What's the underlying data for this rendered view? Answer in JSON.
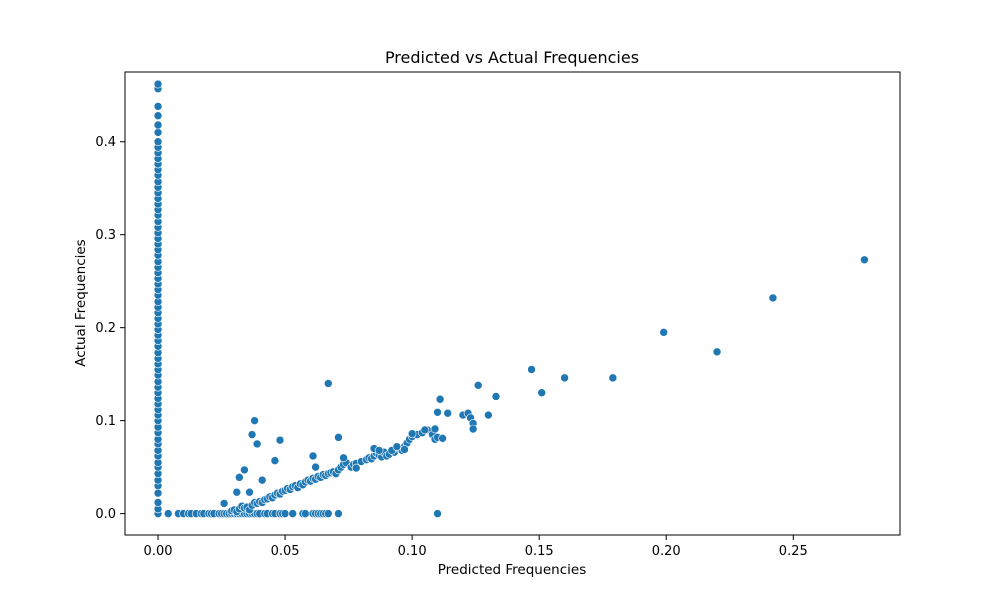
{
  "chart_data": {
    "type": "scatter",
    "title": "Predicted vs Actual Frequencies",
    "xlabel": "Predicted Frequencies",
    "ylabel": "Actual Frequencies",
    "xlim": [
      -0.013,
      0.292
    ],
    "ylim": [
      -0.023,
      0.475
    ],
    "x_ticks": [
      0.0,
      0.05,
      0.1,
      0.15,
      0.2,
      0.25
    ],
    "x_tick_labels": [
      "0.00",
      "0.05",
      "0.10",
      "0.15",
      "0.20",
      "0.25"
    ],
    "y_ticks": [
      0.0,
      0.1,
      0.2,
      0.3,
      0.4
    ],
    "y_tick_labels": [
      "0.0",
      "0.1",
      "0.2",
      "0.3",
      "0.4"
    ],
    "grid": false,
    "marker_color": "#1f77b4",
    "series": [
      {
        "points": [
          [
            0,
            0
          ],
          [
            0,
            0.005
          ],
          [
            0,
            0.012
          ],
          [
            0,
            0.022
          ],
          [
            0,
            0.03
          ],
          [
            0,
            0.036
          ],
          [
            0,
            0.043
          ],
          [
            0,
            0.05
          ],
          [
            0,
            0.055
          ],
          [
            0,
            0.062
          ],
          [
            0,
            0.068
          ],
          [
            0,
            0.075
          ],
          [
            0,
            0.08
          ],
          [
            0,
            0.087
          ],
          [
            0,
            0.093
          ],
          [
            0,
            0.1
          ],
          [
            0,
            0.106
          ],
          [
            0,
            0.112
          ],
          [
            0,
            0.118
          ],
          [
            0,
            0.124
          ],
          [
            0,
            0.13
          ],
          [
            0,
            0.136
          ],
          [
            0,
            0.142
          ],
          [
            0,
            0.149
          ],
          [
            0,
            0.155
          ],
          [
            0,
            0.161
          ],
          [
            0,
            0.167
          ],
          [
            0,
            0.173
          ],
          [
            0,
            0.18
          ],
          [
            0,
            0.186
          ],
          [
            0,
            0.192
          ],
          [
            0,
            0.198
          ],
          [
            0,
            0.204
          ],
          [
            0,
            0.21
          ],
          [
            0,
            0.216
          ],
          [
            0,
            0.222
          ],
          [
            0,
            0.228
          ],
          [
            0,
            0.235
          ],
          [
            0,
            0.241
          ],
          [
            0,
            0.247
          ],
          [
            0,
            0.253
          ],
          [
            0,
            0.259
          ],
          [
            0,
            0.265
          ],
          [
            0,
            0.271
          ],
          [
            0,
            0.278
          ],
          [
            0,
            0.284
          ],
          [
            0,
            0.29
          ],
          [
            0,
            0.296
          ],
          [
            0,
            0.302
          ],
          [
            0,
            0.308
          ],
          [
            0,
            0.314
          ],
          [
            0,
            0.321
          ],
          [
            0,
            0.327
          ],
          [
            0,
            0.333
          ],
          [
            0,
            0.339
          ],
          [
            0,
            0.345
          ],
          [
            0,
            0.351
          ],
          [
            0,
            0.357
          ],
          [
            0,
            0.364
          ],
          [
            0,
            0.37
          ],
          [
            0,
            0.376
          ],
          [
            0,
            0.382
          ],
          [
            0,
            0.388
          ],
          [
            0,
            0.394
          ],
          [
            0,
            0.4
          ],
          [
            0,
            0.41
          ],
          [
            0,
            0.418
          ],
          [
            0,
            0.428
          ],
          [
            0,
            0.438
          ],
          [
            0,
            0.457
          ],
          [
            0,
            0.462
          ],
          [
            0.004,
            0
          ],
          [
            0.008,
            0
          ],
          [
            0.01,
            0
          ],
          [
            0.012,
            0
          ],
          [
            0.013,
            0
          ],
          [
            0.015,
            0
          ],
          [
            0.017,
            0
          ],
          [
            0.018,
            0
          ],
          [
            0.02,
            0
          ],
          [
            0.021,
            0
          ],
          [
            0.022,
            0
          ],
          [
            0.024,
            0
          ],
          [
            0.025,
            0
          ],
          [
            0.026,
            0
          ],
          [
            0.027,
            0
          ],
          [
            0.028,
            0
          ],
          [
            0.029,
            0
          ],
          [
            0.03,
            0
          ],
          [
            0.031,
            0
          ],
          [
            0.032,
            0
          ],
          [
            0.033,
            0
          ],
          [
            0.034,
            0
          ],
          [
            0.035,
            0
          ],
          [
            0.036,
            0
          ],
          [
            0.037,
            0
          ],
          [
            0.038,
            0
          ],
          [
            0.039,
            0
          ],
          [
            0.04,
            0
          ],
          [
            0.042,
            0
          ],
          [
            0.043,
            0
          ],
          [
            0.045,
            0
          ],
          [
            0.046,
            0
          ],
          [
            0.048,
            0
          ],
          [
            0.049,
            0
          ],
          [
            0.05,
            0
          ],
          [
            0.053,
            0
          ],
          [
            0.057,
            0
          ],
          [
            0.058,
            0
          ],
          [
            0.061,
            0
          ],
          [
            0.062,
            0
          ],
          [
            0.063,
            0
          ],
          [
            0.064,
            0
          ],
          [
            0.065,
            0
          ],
          [
            0.066,
            0
          ],
          [
            0.067,
            0
          ],
          [
            0.071,
            0
          ],
          [
            0.11,
            0
          ],
          [
            0.026,
            0.011
          ],
          [
            0.029,
            0.003
          ],
          [
            0.03,
            0.004
          ],
          [
            0.031,
            0.002
          ],
          [
            0.032,
            0.005
          ],
          [
            0.033,
            0.008
          ],
          [
            0.034,
            0.006
          ],
          [
            0.035,
            0.007
          ],
          [
            0.036,
            0.004
          ],
          [
            0.037,
            0.009
          ],
          [
            0.038,
            0.012
          ],
          [
            0.039,
            0.011
          ],
          [
            0.04,
            0.013
          ],
          [
            0.041,
            0.012
          ],
          [
            0.042,
            0.015
          ],
          [
            0.043,
            0.016
          ],
          [
            0.044,
            0.018
          ],
          [
            0.045,
            0.017
          ],
          [
            0.046,
            0.02
          ],
          [
            0.047,
            0.022
          ],
          [
            0.048,
            0.021
          ],
          [
            0.049,
            0.024
          ],
          [
            0.05,
            0.025
          ],
          [
            0.051,
            0.027
          ],
          [
            0.052,
            0.026
          ],
          [
            0.053,
            0.029
          ],
          [
            0.054,
            0.03
          ],
          [
            0.055,
            0.028
          ],
          [
            0.056,
            0.032
          ],
          [
            0.057,
            0.031
          ],
          [
            0.058,
            0.034
          ],
          [
            0.059,
            0.036
          ],
          [
            0.06,
            0.035
          ],
          [
            0.061,
            0.038
          ],
          [
            0.062,
            0.037
          ],
          [
            0.063,
            0.04
          ],
          [
            0.064,
            0.039
          ],
          [
            0.065,
            0.042
          ],
          [
            0.066,
            0.041
          ],
          [
            0.067,
            0.043
          ],
          [
            0.068,
            0.044
          ],
          [
            0.069,
            0.045
          ],
          [
            0.07,
            0.043
          ],
          [
            0.071,
            0.047
          ],
          [
            0.072,
            0.05
          ],
          [
            0.073,
            0.053
          ],
          [
            0.074,
            0.055
          ],
          [
            0.076,
            0.05
          ],
          [
            0.077,
            0.053
          ],
          [
            0.078,
            0.054
          ],
          [
            0.08,
            0.056
          ],
          [
            0.082,
            0.058
          ],
          [
            0.083,
            0.06
          ],
          [
            0.084,
            0.059
          ],
          [
            0.085,
            0.062
          ],
          [
            0.086,
            0.065
          ],
          [
            0.087,
            0.063
          ],
          [
            0.088,
            0.061
          ],
          [
            0.089,
            0.066
          ],
          [
            0.09,
            0.062
          ],
          [
            0.091,
            0.064
          ],
          [
            0.093,
            0.066
          ],
          [
            0.095,
            0.07
          ],
          [
            0.096,
            0.068
          ],
          [
            0.097,
            0.072
          ],
          [
            0.098,
            0.076
          ],
          [
            0.099,
            0.08
          ],
          [
            0.1,
            0.083
          ],
          [
            0.102,
            0.085
          ],
          [
            0.104,
            0.087
          ],
          [
            0.106,
            0.09
          ],
          [
            0.108,
            0.085
          ],
          [
            0.109,
            0.08
          ],
          [
            0.11,
            0.082
          ],
          [
            0.112,
            0.081
          ],
          [
            0.085,
            0.07
          ],
          [
            0.087,
            0.068
          ],
          [
            0.092,
            0.068
          ],
          [
            0.094,
            0.072
          ],
          [
            0.097,
            0.069
          ],
          [
            0.1,
            0.086
          ],
          [
            0.105,
            0.09
          ],
          [
            0.109,
            0.091
          ],
          [
            0.11,
            0.109
          ],
          [
            0.111,
            0.123
          ],
          [
            0.114,
            0.108
          ],
          [
            0.12,
            0.106
          ],
          [
            0.122,
            0.108
          ],
          [
            0.123,
            0.103
          ],
          [
            0.124,
            0.097
          ],
          [
            0.124,
            0.091
          ],
          [
            0.126,
            0.138
          ],
          [
            0.13,
            0.106
          ],
          [
            0.133,
            0.126
          ],
          [
            0.147,
            0.155
          ],
          [
            0.151,
            0.13
          ],
          [
            0.16,
            0.146
          ],
          [
            0.179,
            0.146
          ],
          [
            0.199,
            0.195
          ],
          [
            0.22,
            0.174
          ],
          [
            0.242,
            0.232
          ],
          [
            0.278,
            0.273
          ],
          [
            0.031,
            0.023
          ],
          [
            0.032,
            0.039
          ],
          [
            0.034,
            0.047
          ],
          [
            0.036,
            0.023
          ],
          [
            0.037,
            0.085
          ],
          [
            0.038,
            0.1
          ],
          [
            0.039,
            0.075
          ],
          [
            0.041,
            0.036
          ],
          [
            0.046,
            0.057
          ],
          [
            0.048,
            0.079
          ],
          [
            0.061,
            0.062
          ],
          [
            0.062,
            0.05
          ],
          [
            0.067,
            0.14
          ],
          [
            0.071,
            0.082
          ],
          [
            0.073,
            0.06
          ],
          [
            0.078,
            0.049
          ]
        ]
      }
    ]
  }
}
